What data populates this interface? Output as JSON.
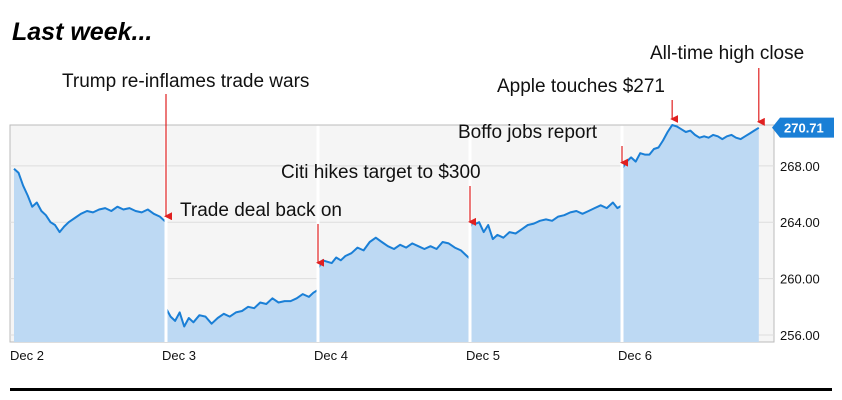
{
  "heading": "Last week...",
  "chart_data": {
    "type": "area",
    "title": "",
    "xlabel": "",
    "ylabel": "",
    "ylim": [
      255.5,
      270.9
    ],
    "y_ticks": [
      256,
      260,
      264,
      268
    ],
    "y_tick_labels": [
      "256.00",
      "260.00",
      "264.00",
      "268.00"
    ],
    "x_tick_labels": [
      "Dec 2",
      "Dec 3",
      "Dec 4",
      "Dec 5",
      "Dec 6"
    ],
    "last_price_label": "270.71",
    "last_price": 270.71,
    "grid": true,
    "colors": {
      "line": "#1a7fd6",
      "fill": "#bdd9f3",
      "plot_bg": "#f5f5f5",
      "grid": "#dddddd",
      "arrow": "#e02020",
      "price_badge": "#1a7fd6"
    },
    "series": [
      {
        "day": "Dec 2",
        "points": [
          [
            0,
            267.8
          ],
          [
            0.03,
            267.5
          ],
          [
            0.06,
            266.6
          ],
          [
            0.09,
            265.9
          ],
          [
            0.12,
            265.1
          ],
          [
            0.15,
            265.4
          ],
          [
            0.18,
            264.8
          ],
          [
            0.21,
            264.5
          ],
          [
            0.24,
            264.0
          ],
          [
            0.27,
            263.8
          ],
          [
            0.3,
            263.3
          ],
          [
            0.33,
            263.7
          ],
          [
            0.36,
            264.0
          ],
          [
            0.4,
            264.3
          ],
          [
            0.44,
            264.6
          ],
          [
            0.48,
            264.8
          ],
          [
            0.52,
            264.7
          ],
          [
            0.56,
            264.9
          ],
          [
            0.6,
            265.0
          ],
          [
            0.64,
            264.8
          ],
          [
            0.68,
            265.1
          ],
          [
            0.72,
            264.9
          ],
          [
            0.76,
            265.0
          ],
          [
            0.8,
            264.8
          ],
          [
            0.84,
            264.7
          ],
          [
            0.88,
            264.9
          ],
          [
            0.92,
            264.6
          ],
          [
            0.96,
            264.4
          ],
          [
            1.0,
            264.0
          ]
        ]
      },
      {
        "day": "Dec 3",
        "points": [
          [
            1.0,
            257.9
          ],
          [
            1.03,
            257.3
          ],
          [
            1.06,
            257.0
          ],
          [
            1.09,
            257.6
          ],
          [
            1.12,
            256.6
          ],
          [
            1.15,
            257.2
          ],
          [
            1.18,
            256.9
          ],
          [
            1.22,
            257.4
          ],
          [
            1.26,
            257.3
          ],
          [
            1.3,
            256.8
          ],
          [
            1.34,
            257.2
          ],
          [
            1.38,
            257.5
          ],
          [
            1.42,
            257.3
          ],
          [
            1.46,
            257.6
          ],
          [
            1.5,
            257.7
          ],
          [
            1.54,
            258.0
          ],
          [
            1.58,
            257.9
          ],
          [
            1.62,
            258.3
          ],
          [
            1.66,
            258.2
          ],
          [
            1.7,
            258.6
          ],
          [
            1.74,
            258.3
          ],
          [
            1.78,
            258.4
          ],
          [
            1.82,
            258.4
          ],
          [
            1.86,
            258.6
          ],
          [
            1.9,
            258.9
          ],
          [
            1.94,
            258.7
          ],
          [
            1.97,
            259.0
          ],
          [
            2.0,
            259.2
          ]
        ]
      },
      {
        "day": "Dec 4",
        "points": [
          [
            2.0,
            260.7
          ],
          [
            2.03,
            261.3
          ],
          [
            2.06,
            261.2
          ],
          [
            2.09,
            261.1
          ],
          [
            2.12,
            261.5
          ],
          [
            2.15,
            261.3
          ],
          [
            2.18,
            261.6
          ],
          [
            2.22,
            261.8
          ],
          [
            2.26,
            262.2
          ],
          [
            2.3,
            262.0
          ],
          [
            2.34,
            262.6
          ],
          [
            2.38,
            262.9
          ],
          [
            2.42,
            262.6
          ],
          [
            2.46,
            262.3
          ],
          [
            2.5,
            262.1
          ],
          [
            2.54,
            262.4
          ],
          [
            2.58,
            262.2
          ],
          [
            2.62,
            262.5
          ],
          [
            2.66,
            262.3
          ],
          [
            2.7,
            262.1
          ],
          [
            2.74,
            262.3
          ],
          [
            2.78,
            262.1
          ],
          [
            2.82,
            262.6
          ],
          [
            2.86,
            262.5
          ],
          [
            2.9,
            262.2
          ],
          [
            2.94,
            262.0
          ],
          [
            2.97,
            261.7
          ],
          [
            3.0,
            261.4
          ]
        ]
      },
      {
        "day": "Dec 5",
        "points": [
          [
            3.0,
            263.6
          ],
          [
            3.02,
            264.1
          ],
          [
            3.04,
            263.9
          ],
          [
            3.06,
            264.0
          ],
          [
            3.09,
            263.3
          ],
          [
            3.12,
            263.8
          ],
          [
            3.15,
            262.8
          ],
          [
            3.18,
            263.1
          ],
          [
            3.22,
            262.9
          ],
          [
            3.26,
            263.3
          ],
          [
            3.3,
            263.2
          ],
          [
            3.34,
            263.5
          ],
          [
            3.38,
            263.8
          ],
          [
            3.42,
            263.9
          ],
          [
            3.46,
            264.1
          ],
          [
            3.5,
            264.2
          ],
          [
            3.54,
            264.1
          ],
          [
            3.58,
            264.4
          ],
          [
            3.62,
            264.5
          ],
          [
            3.66,
            264.7
          ],
          [
            3.7,
            264.8
          ],
          [
            3.74,
            264.6
          ],
          [
            3.78,
            264.8
          ],
          [
            3.82,
            265.0
          ],
          [
            3.86,
            265.2
          ],
          [
            3.9,
            265.0
          ],
          [
            3.94,
            265.4
          ],
          [
            3.97,
            265.0
          ],
          [
            4.0,
            265.2
          ]
        ]
      },
      {
        "day": "Dec 6",
        "points": [
          [
            4.0,
            267.8
          ],
          [
            4.03,
            268.3
          ],
          [
            4.06,
            268.6
          ],
          [
            4.09,
            268.3
          ],
          [
            4.12,
            268.9
          ],
          [
            4.15,
            268.8
          ],
          [
            4.18,
            268.8
          ],
          [
            4.21,
            269.2
          ],
          [
            4.24,
            269.3
          ],
          [
            4.27,
            269.8
          ],
          [
            4.3,
            270.4
          ],
          [
            4.33,
            270.9
          ],
          [
            4.36,
            270.8
          ],
          [
            4.39,
            270.6
          ],
          [
            4.42,
            270.4
          ],
          [
            4.45,
            270.5
          ],
          [
            4.48,
            270.2
          ],
          [
            4.51,
            270.0
          ],
          [
            4.54,
            270.1
          ],
          [
            4.57,
            270.0
          ],
          [
            4.6,
            270.2
          ],
          [
            4.63,
            270.1
          ],
          [
            4.66,
            269.9
          ],
          [
            4.69,
            270.1
          ],
          [
            4.72,
            270.2
          ],
          [
            4.75,
            270.0
          ],
          [
            4.78,
            269.9
          ],
          [
            4.81,
            270.1
          ],
          [
            4.84,
            270.3
          ],
          [
            4.87,
            270.5
          ],
          [
            4.9,
            270.7
          ]
        ]
      }
    ],
    "annotations": [
      {
        "label": "Trump re-inflames trade wars",
        "x": 1.0,
        "y": 264.0
      },
      {
        "label": "Trade deal back on",
        "x": 2.0,
        "y": 260.7
      },
      {
        "label": "Citi hikes target to $300",
        "x": 3.0,
        "y": 263.6
      },
      {
        "label": "Boffo jobs report",
        "x": 4.0,
        "y": 267.8
      },
      {
        "label": "Apple touches $271",
        "x": 4.33,
        "y": 270.9
      },
      {
        "label": "All-time high close",
        "x": 4.9,
        "y": 270.7
      }
    ]
  }
}
